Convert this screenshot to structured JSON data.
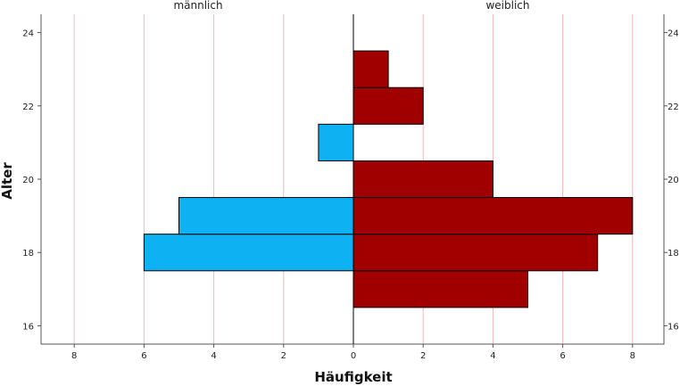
{
  "chart_data": {
    "type": "bar",
    "subtype": "population-pyramid",
    "xlabel": "Häufigkeit",
    "ylabel": "Alter",
    "y_ticks": [
      16,
      18,
      20,
      22,
      24
    ],
    "x_ticks": [
      8,
      6,
      4,
      2,
      0,
      2,
      4,
      6,
      8
    ],
    "x_max": 9,
    "ylim": [
      15.5,
      24.5
    ],
    "categories": [
      17,
      18,
      19,
      20,
      21,
      22,
      23
    ],
    "series": [
      {
        "name": "männlich",
        "side": "left",
        "color": "#0EB1F1",
        "values": [
          0,
          6,
          5,
          0,
          1,
          0,
          0
        ]
      },
      {
        "name": "weiblich",
        "side": "right",
        "color": "#A00000",
        "values": [
          5,
          7,
          8,
          4,
          0,
          2,
          1
        ]
      }
    ],
    "gridline_color": "#F2B8B8",
    "grid": true,
    "legend": "pane labels at top"
  }
}
